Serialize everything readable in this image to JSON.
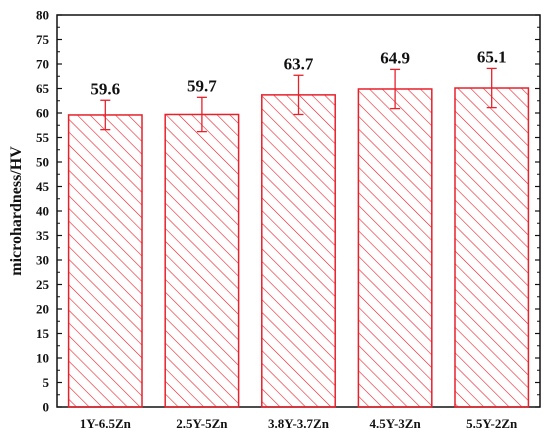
{
  "chart_data": {
    "type": "bar",
    "categories": [
      "1Y-6.5Zn",
      "2.5Y-5Zn",
      "3.8Y-3.7Zn",
      "4.5Y-3Zn",
      "5.5Y-2Zn"
    ],
    "values": [
      59.6,
      59.7,
      63.7,
      64.9,
      65.1
    ],
    "data_labels": [
      "59.6",
      "59.7",
      "63.7",
      "64.9",
      "65.1"
    ],
    "errors": [
      3.0,
      3.5,
      4.0,
      4.0,
      4.0
    ],
    "ylabel": "microhardness/HV",
    "xlabel": "",
    "ylim": [
      0,
      80
    ],
    "yticks": [
      0,
      5,
      10,
      15,
      20,
      25,
      30,
      35,
      40,
      45,
      50,
      55,
      60,
      65,
      70,
      75,
      80
    ],
    "grid": false,
    "bar_fill": "hatched",
    "colors": {
      "bar": "#e8202a",
      "axis": "#111111"
    }
  }
}
